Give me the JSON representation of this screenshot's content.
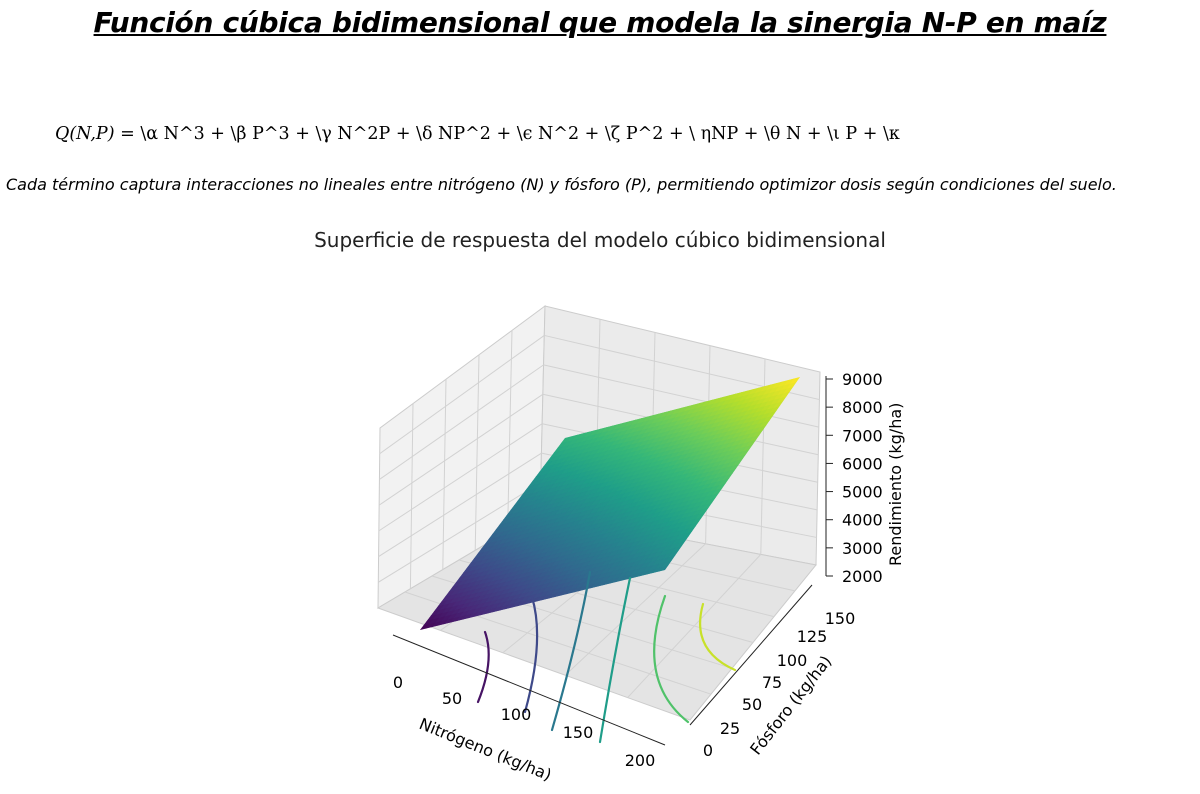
{
  "document": {
    "title": "Función cúbica bidimensional que modela la sinergia N-P en maíz",
    "formula_lhs": "Q(N,P)",
    "formula_rhs": "= \\α N^3  + \\β P^3  + \\γ N^2P  + \\δ NP^2  + \\ϵ N^2  + \\ζ P^2  + \\ ηNP  + \\θ N  + \\ι P  + \\κ",
    "description": "Cada término captura interacciones no lineales entre nitrógeno (N) y fósforo (P), permitiendo optimizor dosis según condiciones del suelo."
  },
  "chart_data": {
    "type": "surface3d",
    "title": "Superficie de respuesta del modelo cúbico bidimensional",
    "xlabel": "Nitrógeno (kg/ha)",
    "ylabel": "Fósforo (kg/ha)",
    "zlabel": "Rendimiento (kg/ha)",
    "x_ticks": [
      "0",
      "50",
      "100",
      "150",
      "200"
    ],
    "y_ticks": [
      "0",
      "25",
      "50",
      "75",
      "100",
      "125",
      "150"
    ],
    "z_ticks": [
      "2000",
      "3000",
      "4000",
      "5000",
      "6000",
      "7000",
      "8000",
      "9000"
    ],
    "xlim": [
      0,
      200
    ],
    "ylim": [
      0,
      150
    ],
    "zlim": [
      2000,
      9000
    ],
    "colormap": "viridis",
    "grid": true,
    "surface_corners": {
      "N0_P0": 2000,
      "N200_P0": 5200,
      "N0_P150": 6500,
      "N200_P150": 9000
    },
    "contour_lines": true
  }
}
